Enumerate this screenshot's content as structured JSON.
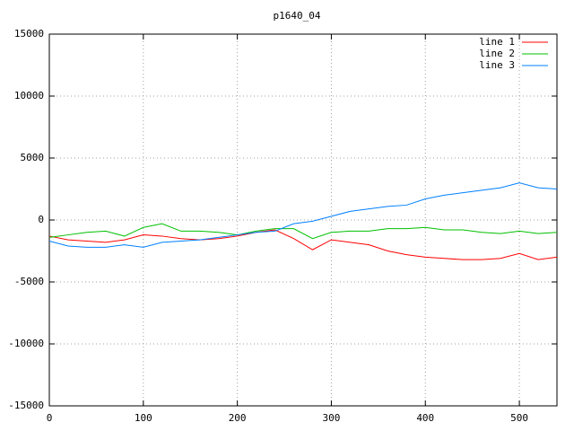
{
  "chart_data": {
    "type": "line",
    "title": "p1640_04",
    "x": [
      0,
      20,
      40,
      60,
      80,
      100,
      120,
      140,
      160,
      180,
      200,
      220,
      240,
      260,
      280,
      300,
      320,
      340,
      360,
      380,
      400,
      420,
      440,
      460,
      480,
      500,
      520,
      540
    ],
    "series": [
      {
        "name": "line 1",
        "color": "#ff0000",
        "values": [
          -1300,
          -1600,
          -1700,
          -1800,
          -1600,
          -1200,
          -1300,
          -1500,
          -1600,
          -1500,
          -1300,
          -1000,
          -800,
          -1500,
          -2400,
          -1600,
          -1800,
          -2000,
          -2500,
          -2800,
          -3000,
          -3100,
          -3200,
          -3200,
          -3100,
          -2700,
          -3200,
          -3000
        ]
      },
      {
        "name": "line 2",
        "color": "#00c000",
        "values": [
          -1400,
          -1200,
          -1000,
          -900,
          -1300,
          -600,
          -300,
          -900,
          -900,
          -1000,
          -1200,
          -900,
          -700,
          -700,
          -1500,
          -1000,
          -900,
          -900,
          -700,
          -700,
          -600,
          -800,
          -800,
          -1000,
          -1100,
          -900,
          -1100,
          -1000
        ]
      },
      {
        "name": "line 3",
        "color": "#0080ff",
        "values": [
          -1700,
          -2100,
          -2200,
          -2200,
          -2000,
          -2200,
          -1800,
          -1700,
          -1600,
          -1400,
          -1200,
          -1000,
          -900,
          -300,
          -100,
          300,
          700,
          900,
          1100,
          1200,
          1700,
          2000,
          2200,
          2400,
          2600,
          3000,
          2600,
          2500
        ]
      }
    ],
    "xlim": [
      0,
      540
    ],
    "xticks": [
      0,
      100,
      200,
      300,
      400,
      500
    ],
    "ylim": [
      -15000,
      15000
    ],
    "yticks": [
      -15000,
      -10000,
      -5000,
      0,
      5000,
      10000,
      15000
    ],
    "grid": true,
    "legend": "top-right"
  }
}
